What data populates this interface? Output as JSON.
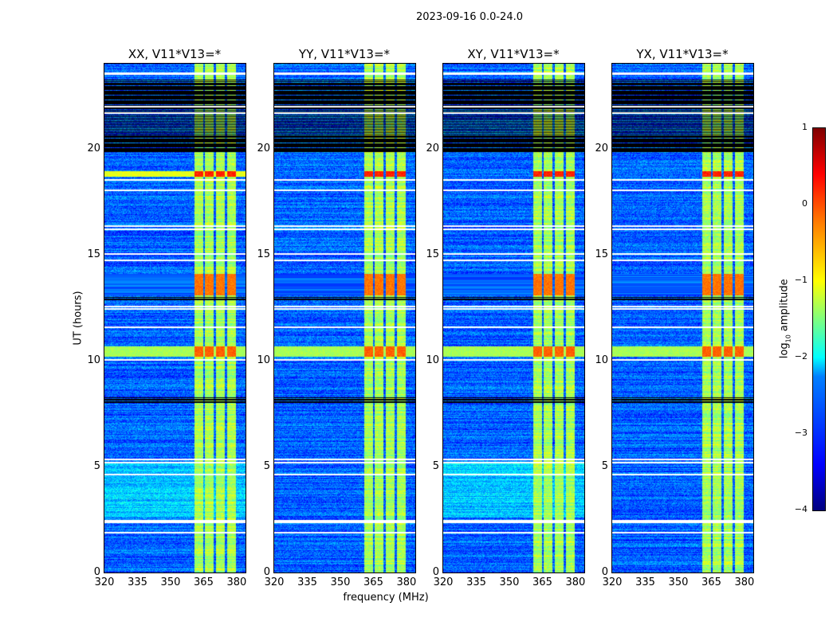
{
  "chart_data": {
    "type": "heatmap",
    "title": "2023-09-16 0.0-24.0",
    "xlabel": "frequency (MHz)",
    "ylabel": "UT (hours)",
    "xlim": [
      320,
      384
    ],
    "ylim": [
      0,
      24
    ],
    "xticks": [
      "320",
      "335",
      "350",
      "365",
      "380"
    ],
    "xtick_values": [
      320,
      335,
      350,
      365,
      380
    ],
    "yticks": [
      "0",
      "5",
      "10",
      "15",
      "20"
    ],
    "ytick_values": [
      0,
      5,
      10,
      15,
      20
    ],
    "panels": [
      {
        "title": "XX, V11*V13=*",
        "key": "XX"
      },
      {
        "title": "YY, V11*V13=*",
        "key": "YY"
      },
      {
        "title": "XY, V11*V13=*",
        "key": "XY"
      },
      {
        "title": "YX, V11*V13=*",
        "key": "YX"
      }
    ],
    "colorbar": {
      "label": "log10 amplitude",
      "label_main": "log",
      "label_sub": "10",
      "label_rest": " amplitude",
      "range": [
        -4,
        1
      ],
      "ticks": [
        "1",
        "0",
        "−1",
        "−2",
        "−3",
        "−4"
      ],
      "tick_values": [
        1,
        0,
        -1,
        -2,
        -3,
        -4
      ],
      "colormap": "jet"
    },
    "features": {
      "background_level": -2.9,
      "rfi_bands_mhz": [
        [
          360.5,
          364.5
        ],
        [
          365.5,
          369.5
        ],
        [
          370.5,
          374.5
        ],
        [
          375.5,
          379.5
        ]
      ],
      "rfi_band_level": -1.3,
      "flagged_white_hours": [
        23.55,
        22.0,
        21.7,
        18.55,
        18.05,
        16.35,
        16.2,
        15.05,
        14.75,
        12.55,
        12.45,
        11.6,
        10.05,
        5.35,
        5.2,
        4.65,
        2.45,
        2.4,
        1.9
      ],
      "blank_black_hours": [
        [
          19.8,
          20.6
        ],
        [
          21.9,
          23.1
        ],
        [
          12.85,
          13.0
        ],
        [
          10.0,
          10.1
        ],
        [
          5.3,
          5.42
        ],
        [
          8.0,
          8.3
        ]
      ],
      "strong_events": [
        {
          "hours": [
            18.7,
            18.95
          ],
          "level": 0.2
        },
        {
          "hours": [
            13.1,
            14.1
          ],
          "level": -0.2
        },
        {
          "hours": [
            10.2,
            10.7
          ],
          "level": -0.1
        }
      ]
    }
  }
}
